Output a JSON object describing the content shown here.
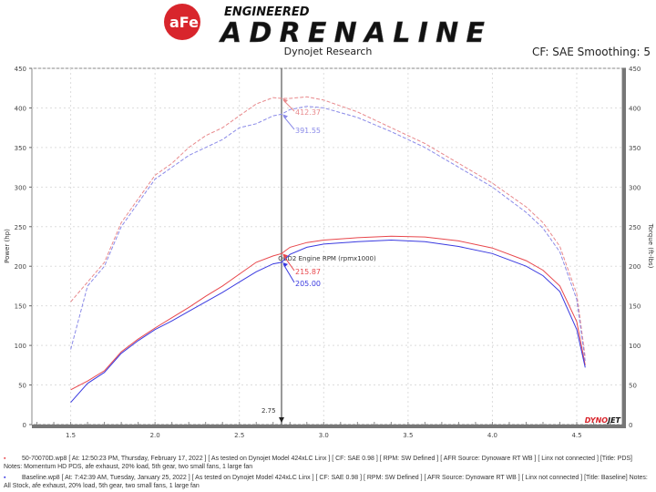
{
  "header": {
    "logo_text": "aFe POWER",
    "brand_line1": "ENGINEERED",
    "brand_line2": "ADRENALINE",
    "subtitle": "Dynojet Research",
    "cf_text": "CF: SAE Smoothing: 5"
  },
  "chart_data": {
    "type": "line",
    "xlabel": "OBD2 Engine RPM (rpmx1000)",
    "ylabel": "Power (hp)",
    "y2label": "Torque (ft-lbs)",
    "xlim": [
      1.27,
      4.77
    ],
    "ylim": [
      0,
      450
    ],
    "y2lim": [
      0,
      450
    ],
    "xticks": [
      "1.5",
      "2.0",
      "2.5",
      "3.0",
      "3.5",
      "4.0",
      "4.5"
    ],
    "yticks": [
      "0",
      "50",
      "100",
      "150",
      "200",
      "250",
      "300",
      "350",
      "400",
      "450"
    ],
    "grid": true,
    "cursor": {
      "x": 2.75,
      "label": "2.75"
    },
    "colors": {
      "run1": "#e8474c",
      "run2": "#3a3ae0"
    },
    "x": [
      1.5,
      1.6,
      1.7,
      1.8,
      1.9,
      2.0,
      2.1,
      2.2,
      2.3,
      2.4,
      2.5,
      2.6,
      2.7,
      2.75,
      2.8,
      2.9,
      3.0,
      3.2,
      3.4,
      3.6,
      3.8,
      4.0,
      4.2,
      4.3,
      4.4,
      4.5,
      4.55
    ],
    "series": [
      {
        "name": "50-70070D.wp8",
        "kind": "power",
        "color": "#e8474c",
        "values": [
          44,
          55,
          68,
          92,
          108,
          122,
          135,
          148,
          162,
          175,
          190,
          205,
          213,
          216,
          224,
          230,
          233,
          236,
          238,
          237,
          232,
          223,
          207,
          195,
          175,
          130,
          75
        ]
      },
      {
        "name": "Baseline.wp8",
        "kind": "power",
        "color": "#3a3ae0",
        "values": [
          28,
          52,
          66,
          90,
          106,
          120,
          131,
          143,
          155,
          167,
          180,
          193,
          203,
          205,
          215,
          224,
          228,
          231,
          233,
          231,
          225,
          216,
          200,
          188,
          168,
          120,
          72
        ]
      },
      {
        "name": "50-70070D.wp8",
        "kind": "torque",
        "color": "#e8898c",
        "values": [
          155,
          180,
          205,
          255,
          285,
          315,
          330,
          350,
          365,
          375,
          390,
          405,
          413,
          412,
          412,
          414,
          410,
          395,
          375,
          355,
          330,
          305,
          275,
          255,
          225,
          165,
          85
        ]
      },
      {
        "name": "Baseline.wp8",
        "kind": "torque",
        "color": "#8a8ae8",
        "values": [
          95,
          175,
          200,
          250,
          280,
          310,
          325,
          340,
          350,
          360,
          375,
          380,
          390,
          392,
          398,
          402,
          400,
          388,
          370,
          350,
          325,
          300,
          268,
          248,
          218,
          158,
          80
        ]
      }
    ],
    "annotations": [
      {
        "text": "412.37",
        "series": 2,
        "color": "#e8898c"
      },
      {
        "text": "391.55",
        "series": 3,
        "color": "#8a8ae8"
      },
      {
        "text": "215.87",
        "series": 0,
        "color": "#e8474c"
      },
      {
        "text": "205.00",
        "series": 1,
        "color": "#3a3ae0"
      }
    ],
    "watermark": "DYNOJET"
  },
  "notes": [
    {
      "color": "#e8474c",
      "text": "50-70070D.wp8 [ At: 12:50:23 PM, Thursday, February 17, 2022 ] [ As tested on Dynojet Model 424xLC Linx ] [ CF: SAE 0.98 ] [ RPM: SW Defined ] [ AFR Source: Dynoware RT WB ] [ Linx not connected ] [Title: PDS]  Notes: Momentum HD PDS, afe exhaust, 20% load, 5th gear, two small fans, 1 large fan"
    },
    {
      "color": "#3a3ae0",
      "text": "Baseline.wp8 [ At: 7:42:39 AM, Tuesday, January 25, 2022 ] [ As tested on Dynojet Model 424xLC Linx ] [ CF: SAE 0.98 ] [ RPM: SW Defined ] [ AFR Source: Dynoware RT WB ] [ Linx not connected ] [Title: Baseline]  Notes: All Stock, afe exhaust, 20% load, 5th gear, two small fans, 1 large fan"
    }
  ]
}
